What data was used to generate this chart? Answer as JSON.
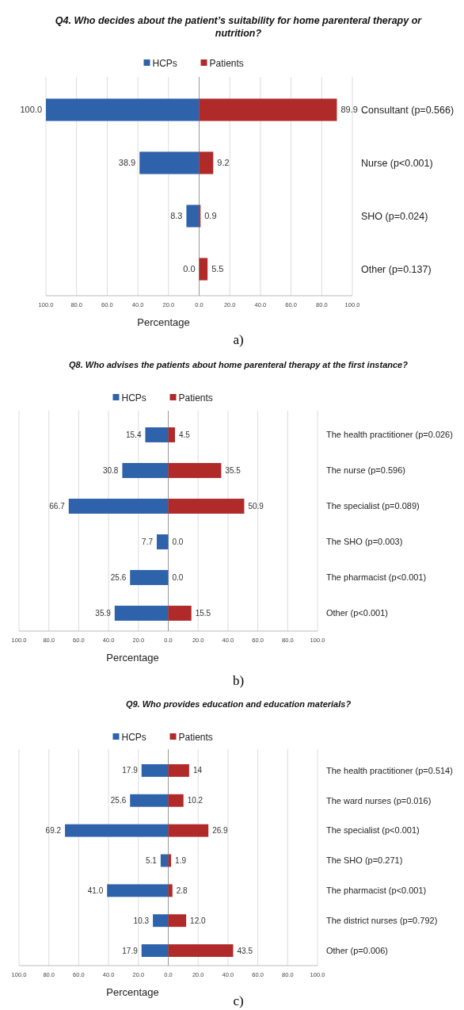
{
  "chart_data": [
    {
      "type": "bar",
      "orientation": "horizontal",
      "title": "Q4. Who decides about the patient’s suitability for home parenteral therapy or nutrition?",
      "xlabel": "Percentage",
      "categories": [
        "Consultant (p=0.566)",
        "Nurse (p<0.001)",
        "SHO (p=0.024)",
        "Other (p=0.137)"
      ],
      "series": [
        {
          "name": "HCPs",
          "color": "#2e62aa",
          "base": [
            -100.0,
            -38.9,
            -8.3,
            null
          ],
          "values": [
            100.0,
            38.9,
            8.3,
            0.0
          ],
          "value_labels": [
            "100.0",
            "38.9",
            "8.3",
            "0.0"
          ]
        },
        {
          "name": "Patients",
          "color": "#b02a2a",
          "values": [
            89.9,
            9.2,
            0.9,
            5.5
          ],
          "value_labels": [
            "89.9",
            "9.2",
            "0.9",
            "5.5"
          ]
        }
      ],
      "xlim": [
        -100,
        100
      ],
      "xticks": [
        {
          "value": -100,
          "label": "100.0"
        },
        {
          "value": -80,
          "label": "80.0"
        },
        {
          "value": -60,
          "label": "60.0"
        },
        {
          "value": -40,
          "label": "40.0"
        },
        {
          "value": -20,
          "label": "20.0"
        },
        {
          "value": 0,
          "label": "0.0"
        },
        {
          "value": 20,
          "label": "20.0"
        },
        {
          "value": 40,
          "label": "40.0"
        },
        {
          "value": 60,
          "label": "60.0"
        },
        {
          "value": 80,
          "label": "80.0"
        },
        {
          "value": 100,
          "label": "100.0"
        }
      ],
      "grid": "x",
      "legend": "top",
      "annotations": [
        "a)"
      ]
    },
    {
      "type": "bar",
      "orientation": "horizontal",
      "title": "Q8. Who advises the patients about home parenteral therapy at the first instance?",
      "xlabel": "Percentage",
      "categories": [
        "The health practitioner (p=0.026)",
        "The nurse (p=0.596)",
        "The specialist  (p=0.089)",
        "The SHO (p=0.003)",
        "The pharmacist (p<0.001)",
        "Other (p<0.001)"
      ],
      "series": [
        {
          "name": "HCPs",
          "color": "#2e62aa",
          "base": [
            -15.4,
            -30.8,
            -66.7,
            -7.7,
            -25.6,
            -35.9
          ],
          "values": [
            15.4,
            30.8,
            66.7,
            7.7,
            25.6,
            35.9
          ],
          "value_labels": [
            "15.4",
            "30.8",
            "66.7",
            "7.7",
            "25.6",
            "35.9"
          ]
        },
        {
          "name": "Patients",
          "color": "#b02a2a",
          "values": [
            4.5,
            35.5,
            50.9,
            0.0,
            0.0,
            15.5
          ],
          "value_labels": [
            "4.5",
            "35.5",
            "50.9",
            "0.0",
            "0.0",
            "15.5"
          ]
        }
      ],
      "xlim": [
        -100,
        100
      ],
      "xticks": [
        {
          "value": -100,
          "label": "100.0"
        },
        {
          "value": -80,
          "label": "80.0"
        },
        {
          "value": -60,
          "label": "60.0"
        },
        {
          "value": -40,
          "label": "40.0"
        },
        {
          "value": -20,
          "label": "20.0"
        },
        {
          "value": 0,
          "label": "0.0"
        },
        {
          "value": 20,
          "label": "20.0"
        },
        {
          "value": 40,
          "label": "40.0"
        },
        {
          "value": 60,
          "label": "60.0"
        },
        {
          "value": 80,
          "label": "80.0"
        },
        {
          "value": 100,
          "label": "100.0"
        }
      ],
      "grid": "x",
      "legend": "top",
      "annotations": [
        "b)"
      ]
    },
    {
      "type": "bar",
      "orientation": "horizontal",
      "title": "Q9. Who provides education and education materials?",
      "xlabel": "Percentage",
      "categories": [
        "The health practitioner (p=0.514)",
        "The ward nurses (p=0.016)",
        "The specialist  (p<0.001)",
        "The SHO (p=0.271)",
        "The pharmacist (p<0.001)",
        "The district nurses (p=0.792)",
        "Other (p=0.006)"
      ],
      "series": [
        {
          "name": "HCPs",
          "color": "#2e62aa",
          "base": [
            -17.9,
            -25.6,
            -69.2,
            -5.1,
            -41.0,
            -10.3,
            -17.9
          ],
          "values": [
            17.9,
            25.6,
            69.2,
            5.1,
            41.0,
            10.3,
            17.9
          ],
          "value_labels": [
            "17.9",
            "25.6",
            "69.2",
            "5.1",
            "41.0",
            "10.3",
            "17.9"
          ]
        },
        {
          "name": "Patients",
          "color": "#b02a2a",
          "values": [
            14,
            10.2,
            26.9,
            1.9,
            2.8,
            12.0,
            43.5
          ],
          "value_labels": [
            "14",
            "10.2",
            "26.9",
            "1.9",
            "2.8",
            "12.0",
            "43.5"
          ]
        }
      ],
      "xlim": [
        -100,
        100
      ],
      "xticks": [
        {
          "value": -100,
          "label": "100.0"
        },
        {
          "value": -80,
          "label": "80.0"
        },
        {
          "value": -60,
          "label": "60.0"
        },
        {
          "value": -40,
          "label": "40.0"
        },
        {
          "value": -20,
          "label": "20.0"
        },
        {
          "value": 0,
          "label": "0.0"
        },
        {
          "value": 20,
          "label": "20.0"
        },
        {
          "value": 40,
          "label": "40.0"
        },
        {
          "value": 60,
          "label": "60.0"
        },
        {
          "value": 80,
          "label": "80.0"
        },
        {
          "value": 100,
          "label": "100.0"
        }
      ],
      "grid": "x",
      "legend": "top",
      "annotations": [
        "c)"
      ]
    }
  ]
}
